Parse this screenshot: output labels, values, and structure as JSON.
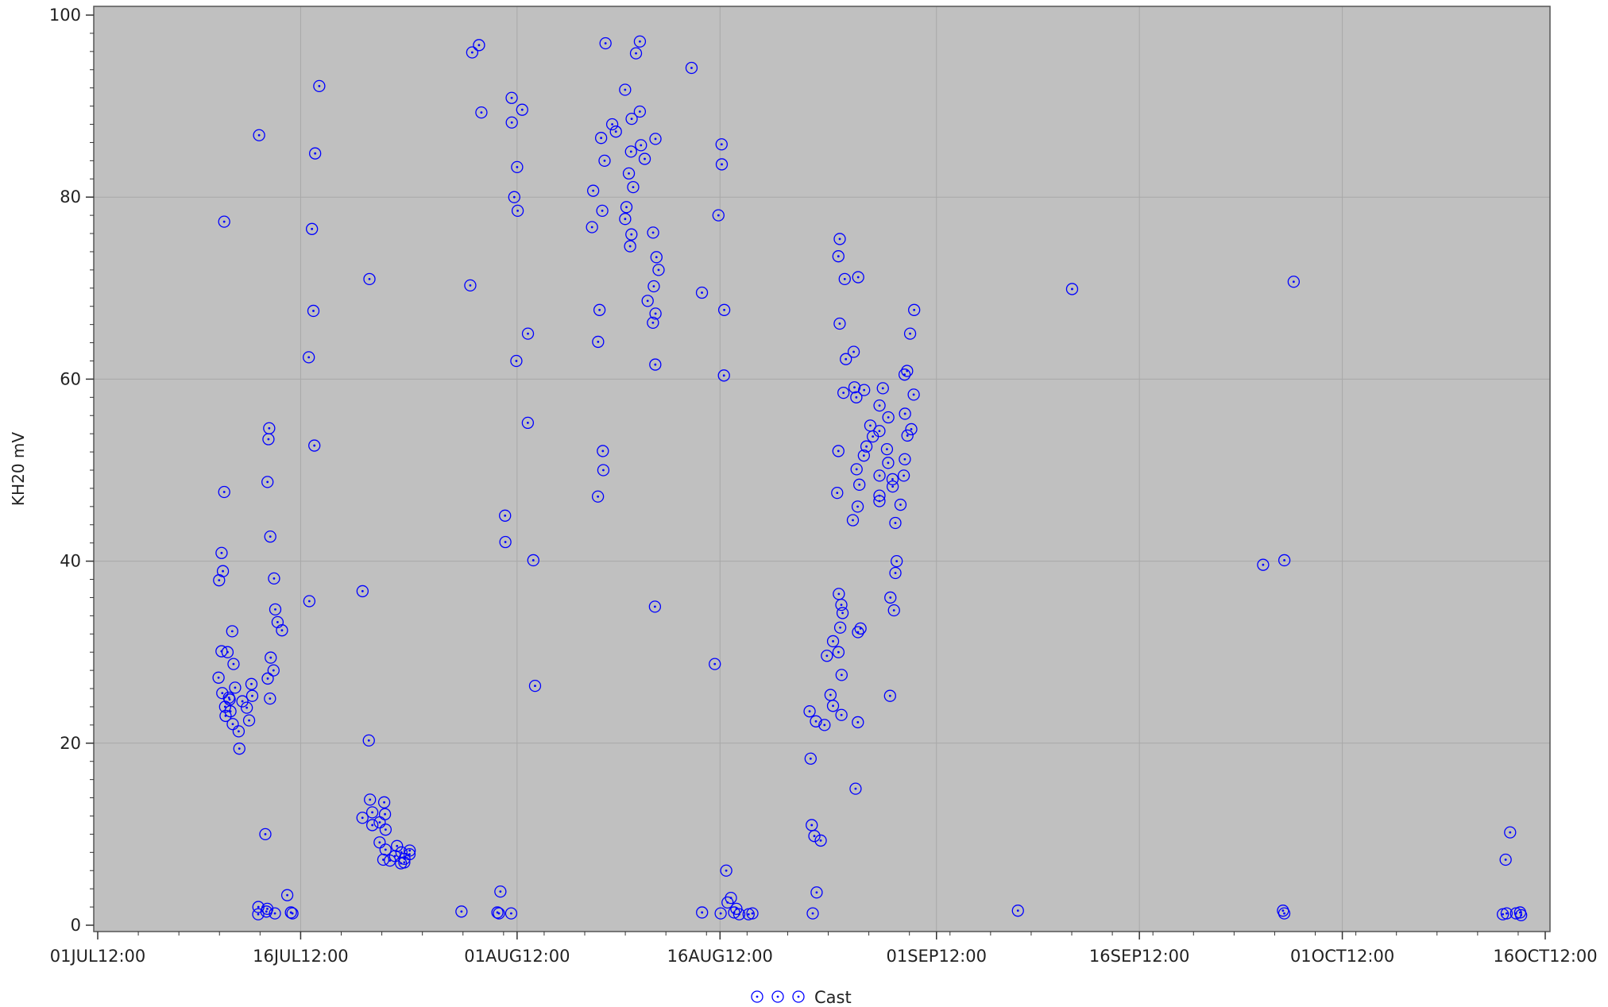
{
  "chart_data": {
    "type": "scatter",
    "title": "",
    "xlabel": "",
    "ylabel": "KH20 mV",
    "x_ticks": [
      "01JUL12:00",
      "16JUL12:00",
      "01AUG12:00",
      "16AUG12:00",
      "01SEP12:00",
      "16SEP12:00",
      "01OCT12:00",
      "16OCT12:00"
    ],
    "y_ticks": [
      "0",
      "20",
      "40",
      "60",
      "80",
      "100"
    ],
    "xlim": [
      "2012-07-01",
      "2012-10-16"
    ],
    "ylim": [
      0,
      100
    ],
    "grid": true,
    "legend_position": "bottom-center",
    "colors": {
      "plot_background": "#c0c0c0",
      "marker": "#0000ff",
      "grid": "#a8a8a8"
    },
    "series": [
      {
        "name": "Cast",
        "marker": "circle-dot",
        "points": [
          [
            "2012-07-10",
            77.3
          ],
          [
            "2012-07-10",
            47.6
          ],
          [
            "2012-07-10",
            40.9
          ],
          [
            "2012-07-10",
            38.9
          ],
          [
            "2012-07-10",
            37.9
          ],
          [
            "2012-07-10",
            30.1
          ],
          [
            "2012-07-10",
            27.2
          ],
          [
            "2012-07-10",
            25.5
          ],
          [
            "2012-07-10",
            24.0
          ],
          [
            "2012-07-10",
            23.0
          ],
          [
            "2012-07-11",
            32.3
          ],
          [
            "2012-07-11",
            30.0
          ],
          [
            "2012-07-11",
            28.7
          ],
          [
            "2012-07-11",
            26.1
          ],
          [
            "2012-07-11",
            24.8
          ],
          [
            "2012-07-11",
            23.5
          ],
          [
            "2012-07-11",
            22.1
          ],
          [
            "2012-07-11",
            21.3
          ],
          [
            "2012-07-11",
            19.4
          ],
          [
            "2012-07-11",
            25.0
          ],
          [
            "2012-07-12",
            26.5
          ],
          [
            "2012-07-12",
            25.2
          ],
          [
            "2012-07-12",
            24.6
          ],
          [
            "2012-07-12",
            23.9
          ],
          [
            "2012-07-12",
            22.5
          ],
          [
            "2012-07-13",
            86.8
          ],
          [
            "2012-07-13",
            10.0
          ],
          [
            "2012-07-13",
            2.0
          ],
          [
            "2012-07-13",
            1.5
          ],
          [
            "2012-07-13",
            1.2
          ],
          [
            "2012-07-14",
            54.6
          ],
          [
            "2012-07-14",
            53.4
          ],
          [
            "2012-07-14",
            48.7
          ],
          [
            "2012-07-14",
            42.7
          ],
          [
            "2012-07-14",
            38.1
          ],
          [
            "2012-07-14",
            34.7
          ],
          [
            "2012-07-14",
            33.3
          ],
          [
            "2012-07-14",
            29.4
          ],
          [
            "2012-07-14",
            28.0
          ],
          [
            "2012-07-14",
            27.1
          ],
          [
            "2012-07-14",
            24.9
          ],
          [
            "2012-07-14",
            1.8
          ],
          [
            "2012-07-14",
            1.3
          ],
          [
            "2012-07-15",
            32.4
          ],
          [
            "2012-07-15",
            3.3
          ],
          [
            "2012-07-15",
            1.4
          ],
          [
            "2012-07-15",
            1.3
          ],
          [
            "2012-07-17",
            92.2
          ],
          [
            "2012-07-17",
            84.8
          ],
          [
            "2012-07-17",
            76.5
          ],
          [
            "2012-07-17",
            67.5
          ],
          [
            "2012-07-17",
            62.4
          ],
          [
            "2012-07-17",
            52.7
          ],
          [
            "2012-07-17",
            35.6
          ],
          [
            "2012-07-21",
            71.0
          ],
          [
            "2012-07-21",
            36.7
          ],
          [
            "2012-07-21",
            20.3
          ],
          [
            "2012-07-21",
            13.8
          ],
          [
            "2012-07-21",
            12.4
          ],
          [
            "2012-07-21",
            11.8
          ],
          [
            "2012-07-21",
            11.0
          ],
          [
            "2012-07-22",
            13.5
          ],
          [
            "2012-07-22",
            12.2
          ],
          [
            "2012-07-22",
            11.3
          ],
          [
            "2012-07-22",
            10.5
          ],
          [
            "2012-07-22",
            9.1
          ],
          [
            "2012-07-22",
            8.3
          ],
          [
            "2012-07-22",
            7.2
          ],
          [
            "2012-07-23",
            8.7
          ],
          [
            "2012-07-23",
            8.0
          ],
          [
            "2012-07-23",
            7.6
          ],
          [
            "2012-07-23",
            7.1
          ],
          [
            "2012-07-23",
            6.8
          ],
          [
            "2012-07-24",
            8.2
          ],
          [
            "2012-07-24",
            7.8
          ],
          [
            "2012-07-24",
            7.3
          ],
          [
            "2012-07-24",
            6.9
          ],
          [
            "2012-07-28",
            1.5
          ],
          [
            "2012-07-29",
            96.7
          ],
          [
            "2012-07-29",
            95.9
          ],
          [
            "2012-07-29",
            89.3
          ],
          [
            "2012-07-29",
            70.3
          ],
          [
            "2012-07-31",
            45.0
          ],
          [
            "2012-07-31",
            42.1
          ],
          [
            "2012-07-31",
            3.7
          ],
          [
            "2012-07-31",
            1.4
          ],
          [
            "2012-07-31",
            1.3
          ],
          [
            "2012-08-01",
            90.9
          ],
          [
            "2012-08-01",
            89.6
          ],
          [
            "2012-08-01",
            88.2
          ],
          [
            "2012-08-01",
            83.3
          ],
          [
            "2012-08-01",
            80.0
          ],
          [
            "2012-08-01",
            78.5
          ],
          [
            "2012-08-01",
            62.0
          ],
          [
            "2012-08-01",
            1.3
          ],
          [
            "2012-08-02",
            65.0
          ],
          [
            "2012-08-02",
            55.2
          ],
          [
            "2012-08-02",
            40.1
          ],
          [
            "2012-08-02",
            26.3
          ],
          [
            "2012-08-07",
            52.1
          ],
          [
            "2012-08-07",
            50.0
          ],
          [
            "2012-08-07",
            47.1
          ],
          [
            "2012-08-07",
            64.1
          ],
          [
            "2012-08-07",
            67.6
          ],
          [
            "2012-08-07",
            76.7
          ],
          [
            "2012-08-07",
            78.5
          ],
          [
            "2012-08-07",
            80.7
          ],
          [
            "2012-08-07",
            84.0
          ],
          [
            "2012-08-07",
            86.5
          ],
          [
            "2012-08-08",
            96.9
          ],
          [
            "2012-08-08",
            88.0
          ],
          [
            "2012-08-08",
            87.2
          ],
          [
            "2012-08-09",
            91.8
          ],
          [
            "2012-08-09",
            88.6
          ],
          [
            "2012-08-09",
            85.0
          ],
          [
            "2012-08-09",
            82.6
          ],
          [
            "2012-08-09",
            78.9
          ],
          [
            "2012-08-09",
            77.6
          ],
          [
            "2012-08-09",
            75.9
          ],
          [
            "2012-08-09",
            74.6
          ],
          [
            "2012-08-10",
            97.1
          ],
          [
            "2012-08-10",
            95.8
          ],
          [
            "2012-08-10",
            89.4
          ],
          [
            "2012-08-10",
            85.7
          ],
          [
            "2012-08-10",
            84.2
          ],
          [
            "2012-08-10",
            81.1
          ],
          [
            "2012-08-11",
            86.4
          ],
          [
            "2012-08-11",
            73.4
          ],
          [
            "2012-08-11",
            70.2
          ],
          [
            "2012-08-11",
            68.6
          ],
          [
            "2012-08-11",
            67.2
          ],
          [
            "2012-08-11",
            66.2
          ],
          [
            "2012-08-11",
            76.1
          ],
          [
            "2012-08-11",
            72.0
          ],
          [
            "2012-08-11",
            61.6
          ],
          [
            "2012-08-11",
            35.0
          ],
          [
            "2012-08-14",
            94.2
          ],
          [
            "2012-08-15",
            69.5
          ],
          [
            "2012-08-15",
            1.4
          ],
          [
            "2012-08-16",
            85.8
          ],
          [
            "2012-08-16",
            83.6
          ],
          [
            "2012-08-16",
            78.0
          ],
          [
            "2012-08-16",
            67.6
          ],
          [
            "2012-08-16",
            60.4
          ],
          [
            "2012-08-16",
            28.7
          ],
          [
            "2012-08-16",
            6.0
          ],
          [
            "2012-08-16",
            1.3
          ],
          [
            "2012-08-17",
            3.0
          ],
          [
            "2012-08-17",
            2.5
          ],
          [
            "2012-08-17",
            1.8
          ],
          [
            "2012-08-17",
            1.4
          ],
          [
            "2012-08-17",
            1.2
          ],
          [
            "2012-08-18",
            1.3
          ],
          [
            "2012-08-18",
            1.2
          ],
          [
            "2012-08-23",
            18.3
          ],
          [
            "2012-08-23",
            11.0
          ],
          [
            "2012-08-23",
            9.8
          ],
          [
            "2012-08-23",
            9.3
          ],
          [
            "2012-08-23",
            3.6
          ],
          [
            "2012-08-23",
            1.3
          ],
          [
            "2012-08-23",
            23.5
          ],
          [
            "2012-08-23",
            22.4
          ],
          [
            "2012-08-24",
            25.3
          ],
          [
            "2012-08-24",
            24.1
          ],
          [
            "2012-08-24",
            31.2
          ],
          [
            "2012-08-24",
            29.6
          ],
          [
            "2012-08-24",
            22.0
          ],
          [
            "2012-08-25",
            36.4
          ],
          [
            "2012-08-25",
            35.2
          ],
          [
            "2012-08-25",
            34.3
          ],
          [
            "2012-08-25",
            32.7
          ],
          [
            "2012-08-25",
            30.0
          ],
          [
            "2012-08-25",
            27.5
          ],
          [
            "2012-08-25",
            23.1
          ],
          [
            "2012-08-25",
            75.4
          ],
          [
            "2012-08-25",
            73.5
          ],
          [
            "2012-08-25",
            71.0
          ],
          [
            "2012-08-25",
            66.1
          ],
          [
            "2012-08-25",
            62.2
          ],
          [
            "2012-08-25",
            58.5
          ],
          [
            "2012-08-25",
            52.1
          ],
          [
            "2012-08-25",
            47.5
          ],
          [
            "2012-08-26",
            63.0
          ],
          [
            "2012-08-26",
            71.2
          ],
          [
            "2012-08-26",
            59.1
          ],
          [
            "2012-08-26",
            58.0
          ],
          [
            "2012-08-26",
            50.1
          ],
          [
            "2012-08-26",
            48.4
          ],
          [
            "2012-08-26",
            46.0
          ],
          [
            "2012-08-26",
            44.5
          ],
          [
            "2012-08-26",
            32.6
          ],
          [
            "2012-08-26",
            32.2
          ],
          [
            "2012-08-26",
            22.3
          ],
          [
            "2012-08-26",
            15.0
          ],
          [
            "2012-08-27",
            58.8
          ],
          [
            "2012-08-27",
            54.9
          ],
          [
            "2012-08-27",
            53.7
          ],
          [
            "2012-08-27",
            52.6
          ],
          [
            "2012-08-27",
            51.6
          ],
          [
            "2012-08-28",
            59.0
          ],
          [
            "2012-08-28",
            57.1
          ],
          [
            "2012-08-28",
            55.8
          ],
          [
            "2012-08-28",
            54.3
          ],
          [
            "2012-08-28",
            52.3
          ],
          [
            "2012-08-28",
            50.8
          ],
          [
            "2012-08-28",
            49.4
          ],
          [
            "2012-08-28",
            47.2
          ],
          [
            "2012-08-28",
            46.6
          ],
          [
            "2012-08-29",
            49.0
          ],
          [
            "2012-08-29",
            48.2
          ],
          [
            "2012-08-29",
            46.2
          ],
          [
            "2012-08-29",
            44.2
          ],
          [
            "2012-08-29",
            40.0
          ],
          [
            "2012-08-29",
            38.7
          ],
          [
            "2012-08-29",
            36.0
          ],
          [
            "2012-08-29",
            34.6
          ],
          [
            "2012-08-29",
            25.2
          ],
          [
            "2012-08-30",
            60.5
          ],
          [
            "2012-08-30",
            60.9
          ],
          [
            "2012-08-30",
            58.3
          ],
          [
            "2012-08-30",
            56.2
          ],
          [
            "2012-08-30",
            54.5
          ],
          [
            "2012-08-30",
            53.8
          ],
          [
            "2012-08-30",
            51.2
          ],
          [
            "2012-08-30",
            49.4
          ],
          [
            "2012-08-30",
            67.6
          ],
          [
            "2012-08-30",
            65.0
          ],
          [
            "2012-09-07",
            1.6
          ],
          [
            "2012-09-11",
            69.9
          ],
          [
            "2012-09-25",
            39.6
          ],
          [
            "2012-09-27",
            70.7
          ],
          [
            "2012-09-27",
            40.1
          ],
          [
            "2012-09-27",
            1.6
          ],
          [
            "2012-09-27",
            1.3
          ],
          [
            "2012-10-13",
            10.2
          ],
          [
            "2012-10-13",
            7.2
          ],
          [
            "2012-10-13",
            1.3
          ],
          [
            "2012-10-13",
            1.2
          ],
          [
            "2012-10-14",
            1.3
          ],
          [
            "2012-10-14",
            1.1
          ],
          [
            "2012-10-14",
            1.4
          ]
        ]
      }
    ]
  }
}
